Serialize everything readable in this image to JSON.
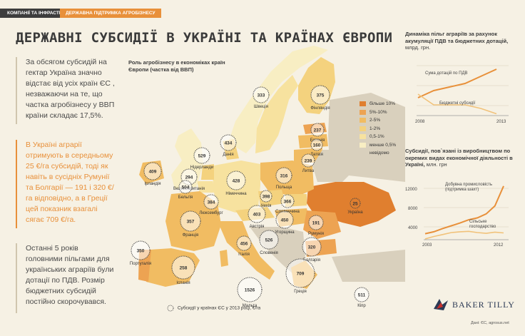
{
  "tabs": {
    "tab1": "КОМПАНІЇ ТА ІНФРАСТРУКТУРА",
    "tab2": "ДЕРЖАВНА ПІДТРИМКА АГРОБІЗНЕСУ"
  },
  "title": "ДЕРЖАВНІ СУБСИДІЇ В УКРАЇНІ ТА КРАЇНАХ ЄВРОПИ",
  "lead1": "За обсягом субсидій на гектар Україна значно відстає від усіх країн ЄС , незважаючи на те, що частка агробізнесу у ВВП країни складає 17,5%.",
  "lead2": "В Україні аграрії отримують в середньому 25 €/га субсидій, тоді як навіть в сусідніх Румунії та Болгарії — 191 і 320 €/га відповідно, а в Греції цей показник взагалі сягає 709 €/га.",
  "lead3": "Останні 5 років головними пільгами для українських аграріїв були дотації по ПДВ. Розмір бюджетних субсидій постійно скорочувався.",
  "map": {
    "title": "Роль агробізнесу в економіках країн Європи (частка від ВВП)",
    "legend": [
      {
        "label": "більше 10%",
        "color": "#e07f2f"
      },
      {
        "label": "5%-10%",
        "color": "#eda352"
      },
      {
        "label": "2-5%",
        "color": "#f1bc62"
      },
      {
        "label": "1-2%",
        "color": "#f4d27e"
      },
      {
        "label": "0,5-1%",
        "color": "#f7e29f"
      },
      {
        "label": "менше 0,5%",
        "color": "#f8eec3"
      },
      {
        "label": "невідомо",
        "color": "#d9d0bd"
      }
    ],
    "subsidy_caption": "Субсидії у країнах ЄС у 2013 році, €/га",
    "countries": [
      {
        "name": "Швеція",
        "value": "333"
      },
      {
        "name": "Фінляндія",
        "value": "375"
      },
      {
        "name": "Естонія",
        "value": "237"
      },
      {
        "name": "Латвія",
        "value": "160"
      },
      {
        "name": "Литва",
        "value": "239"
      },
      {
        "name": "Великобританія",
        "value": "294"
      },
      {
        "name": "Ірландія",
        "value": "409"
      },
      {
        "name": "Данія",
        "value": "434"
      },
      {
        "name": "Нідерланди",
        "value": "529"
      },
      {
        "name": "Бельгія",
        "value": "504"
      },
      {
        "name": "Люксембург",
        "value": "384"
      },
      {
        "name": "Німеччина",
        "value": "428"
      },
      {
        "name": "Польща",
        "value": "316"
      },
      {
        "name": "Чехія",
        "value": "398"
      },
      {
        "name": "Словаччина",
        "value": "366"
      },
      {
        "name": "Австрія",
        "value": "403"
      },
      {
        "name": "Угорщина",
        "value": "450"
      },
      {
        "name": "Франція",
        "value": "357"
      },
      {
        "name": "Словенія",
        "value": "526"
      },
      {
        "name": "Італія",
        "value": "456"
      },
      {
        "name": "Румунія",
        "value": "191"
      },
      {
        "name": "Болгарія",
        "value": "320"
      },
      {
        "name": "Португалія",
        "value": "350"
      },
      {
        "name": "Іспанія",
        "value": "258"
      },
      {
        "name": "Греція",
        "value": "709"
      },
      {
        "name": "Мальта",
        "value": "1526"
      },
      {
        "name": "Кіпр",
        "value": "511"
      },
      {
        "name": "Україна",
        "value": "25"
      }
    ]
  },
  "chart1": {
    "title": "Динаміка пільг аграріїв за рахунок акумуляції ПДВ та бюджетних дотацій,",
    "unit": "млрд. грн.",
    "series1": "Сума дотацій по ПДВ",
    "series2": "Бюджетні субсидії",
    "x_start": "2008",
    "x_end": "2013"
  },
  "chart2": {
    "title": "Субсидії, пов`язані із виробництвом по окремих видах економічної діяльності в Україні,",
    "unit": "млн. грн",
    "series1": "Добувна промисловість (підтримка шахт)",
    "series2": "Сільське господарство",
    "y1": "12000",
    "y2": "8000",
    "y3": "4000",
    "y4": "0",
    "x_start": "2003",
    "x_end": "2012"
  },
  "logo": "BAKER TILLY",
  "source": "Дані: ЄС, agrosus.net",
  "chart_data": [
    {
      "type": "line",
      "title": "Динаміка пільг аграріїв за рахунок акумуляції ПДВ та бюджетних дотацій, млрд. грн.",
      "x": [
        2008,
        2009,
        2010,
        2011,
        2012,
        2013
      ],
      "series": [
        {
          "name": "Сума дотацій по ПДВ",
          "values": [
            5,
            7,
            8,
            9,
            11,
            13
          ]
        },
        {
          "name": "Бюджетні субсидії",
          "values": [
            6,
            3,
            3,
            3,
            2,
            0.5
          ]
        }
      ]
    },
    {
      "type": "line",
      "title": "Субсидії, пов`язані із виробництвом по окремих видах економічної діяльності в Україні, млн. грн",
      "x": [
        2003,
        2004,
        2005,
        2006,
        2007,
        2008,
        2009,
        2010,
        2011,
        2012
      ],
      "ylim": [
        0,
        12000
      ],
      "series": [
        {
          "name": "Добувна промисловість (підтримка шахт)",
          "values": [
            1500,
            2000,
            2800,
            3500,
            4200,
            5000,
            5500,
            6500,
            8500,
            13500
          ]
        },
        {
          "name": "Сільське господарство",
          "values": [
            200,
            800,
            1300,
            1800,
            2000,
            2100,
            1800,
            1600,
            1900,
            1700
          ]
        }
      ]
    }
  ]
}
